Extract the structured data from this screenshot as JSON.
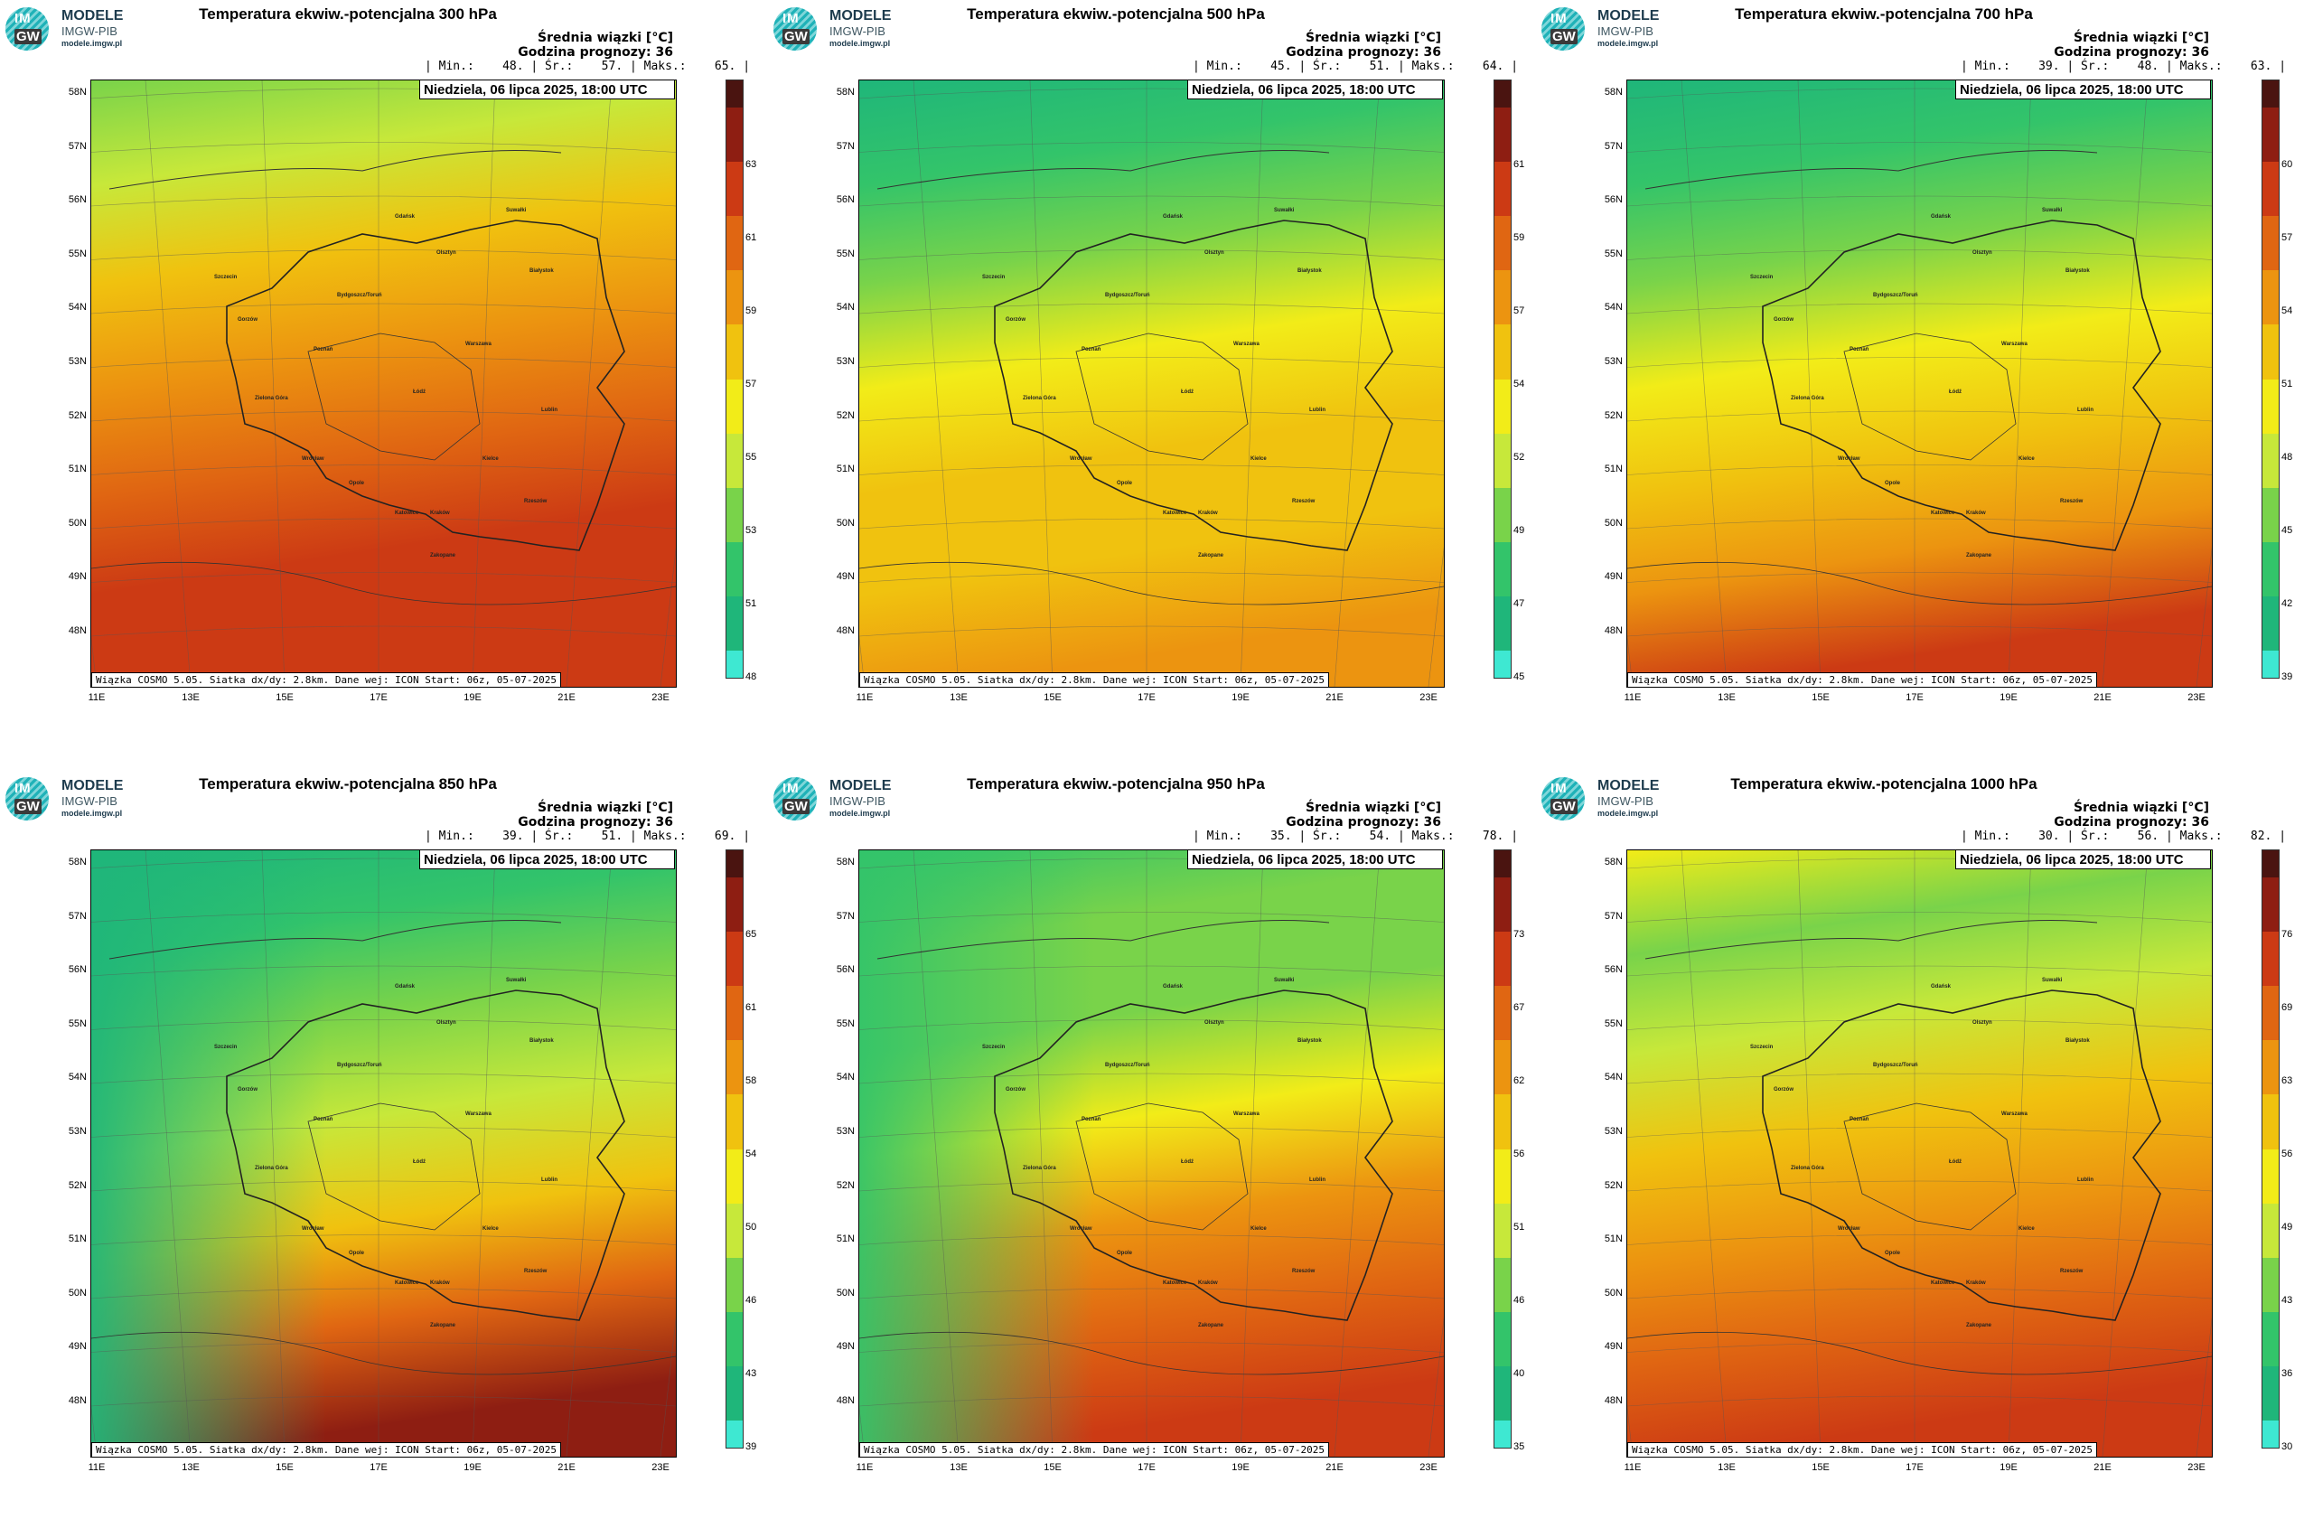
{
  "logo": {
    "line1": "MODELE",
    "line2": "IMGW-PIB",
    "line3": "modele.imgw.pl",
    "im": "IM",
    "gw": "GW"
  },
  "common": {
    "legend_title": "Średnia wiązki [°C]",
    "forecast_hour": "Godzina prognozy: 36",
    "date": "Niedziela, 06 lipca 2025, 18:00 UTC",
    "credit": "Wiązka COSMO 5.05. Siatka dx/dy: 2.8km. Dane wej: ICON Start: 06z, 05-07-2025",
    "lat_labels": [
      "58N",
      "57N",
      "56N",
      "55N",
      "54N",
      "53N",
      "52N",
      "51N",
      "50N",
      "49N",
      "48N"
    ],
    "lon_labels": [
      "11E",
      "13E",
      "15E",
      "17E",
      "19E",
      "21E",
      "23E"
    ],
    "cities": [
      "Gdańsk",
      "Olsztyn",
      "Suwałki",
      "Szczecin",
      "Białystok",
      "Bydgoszcz/Toruń",
      "Gorzów",
      "Poznań",
      "Warszawa",
      "Zielona Góra",
      "Łódź",
      "Lublin",
      "Wrocław",
      "Kielce",
      "Opole",
      "Katowice",
      "Kraków",
      "Rzeszów",
      "Zakopane"
    ],
    "palette": [
      "#3ee8d2",
      "#1fb67a",
      "#33c46a",
      "#79d34a",
      "#c7e83a",
      "#f2ec18",
      "#f0c20f",
      "#ec9410",
      "#e06612",
      "#cc3a14",
      "#8e1e12",
      "#4a1410"
    ]
  },
  "panels": [
    {
      "title": "Temperatura ekwiw.-potencjalna 300 hPa",
      "stats": "| Min.:    48. | Śr.:    57. | Maks.:    65. |",
      "ticks": [
        "63",
        "61",
        "59",
        "57",
        "55",
        "53",
        "51",
        "48"
      ],
      "min": 48,
      "mean": 57,
      "max": 65
    },
    {
      "title": "Temperatura ekwiw.-potencjalna 500 hPa",
      "stats": "| Min.:    45. | Śr.:    51. | Maks.:    64. |",
      "ticks": [
        "61",
        "59",
        "57",
        "54",
        "52",
        "49",
        "47",
        "45"
      ],
      "min": 45,
      "mean": 51,
      "max": 64
    },
    {
      "title": "Temperatura ekwiw.-potencjalna 700 hPa",
      "stats": "| Min.:    39. | Śr.:    48. | Maks.:    63. |",
      "ticks": [
        "60",
        "57",
        "54",
        "51",
        "48",
        "45",
        "42",
        "39"
      ],
      "min": 39,
      "mean": 48,
      "max": 63
    },
    {
      "title": "Temperatura ekwiw.-potencjalna 850 hPa",
      "stats": "| Min.:    39. | Śr.:    51. | Maks.:    69. |",
      "ticks": [
        "65",
        "61",
        "58",
        "54",
        "50",
        "46",
        "43",
        "39"
      ],
      "min": 39,
      "mean": 51,
      "max": 69
    },
    {
      "title": "Temperatura ekwiw.-potencjalna 950 hPa",
      "stats": "| Min.:    35. | Śr.:    54. | Maks.:    78. |",
      "ticks": [
        "73",
        "67",
        "62",
        "56",
        "51",
        "46",
        "40",
        "35"
      ],
      "min": 35,
      "mean": 54,
      "max": 78
    },
    {
      "title": "Temperatura ekwiw.-potencjalna 1000 hPa",
      "stats": "| Min.:    30. | Śr.:    56. | Maks.:    82. |",
      "ticks": [
        "76",
        "69",
        "63",
        "56",
        "49",
        "43",
        "36",
        "30"
      ],
      "min": 30,
      "mean": 56,
      "max": 82
    }
  ]
}
